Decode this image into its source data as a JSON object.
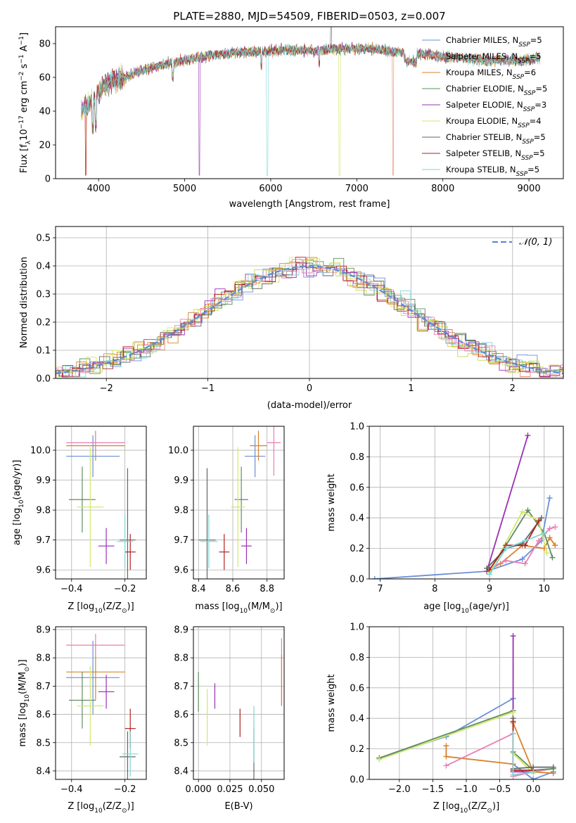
{
  "colors": [
    "#6a8fd8",
    "#e58a6a",
    "#d8822a",
    "#5f8d5f",
    "#9a2fb5",
    "#d2e86a",
    "#666666",
    "#b22222",
    "#7fd6d6",
    "#e87fb3",
    "#c8d850"
  ],
  "chart_data": [
    {
      "id": "spectrum",
      "type": "line",
      "title": "PLATE=2880, MJD=54509, FIBERID=0503, z=0.007",
      "xlabel": "wavelength [Angstrom, rest frame]",
      "ylabel": "Flux [f",
      "ylabel_sub": "λ",
      "ylabel_rest": "10",
      "ylabel_exp": "−17",
      "ylabel_units": " erg cm",
      "ylabel_units_exp": "−2",
      "ylabel_units2": " s",
      "ylabel_units2_exp": "−1",
      "ylabel_units3": " A",
      "ylabel_units3_exp": "−1",
      "ylabel_units4": "]",
      "xlim": [
        3500,
        9400
      ],
      "ylim": [
        0,
        90
      ],
      "xticks": [
        4000,
        5000,
        6000,
        7000,
        8000,
        9000
      ],
      "yticks": [
        0,
        20,
        40,
        60,
        80
      ],
      "legend_position": "top-right",
      "continuum": [
        [
          3800,
          40
        ],
        [
          3900,
          45
        ],
        [
          4000,
          52
        ],
        [
          4100,
          57
        ],
        [
          4300,
          60
        ],
        [
          4500,
          64
        ],
        [
          4700,
          67
        ],
        [
          4900,
          69
        ],
        [
          5100,
          71
        ],
        [
          5300,
          73
        ],
        [
          5500,
          74
        ],
        [
          5700,
          75
        ],
        [
          5900,
          75
        ],
        [
          6100,
          76
        ],
        [
          6300,
          76
        ],
        [
          6500,
          76
        ],
        [
          6700,
          77
        ],
        [
          6900,
          77
        ],
        [
          7100,
          77
        ],
        [
          7300,
          76
        ],
        [
          7500,
          75
        ],
        [
          7700,
          74
        ],
        [
          7900,
          73
        ],
        [
          8100,
          72
        ],
        [
          8300,
          71
        ],
        [
          8500,
          70
        ],
        [
          8700,
          70
        ],
        [
          8900,
          70
        ],
        [
          9100,
          71
        ]
      ],
      "series": [
        {
          "name": "Chabrier MILES, N",
          "sub": "SSP",
          "eq": "=5",
          "color": "#6a8fd8"
        },
        {
          "name": "Salpeter MILES, N",
          "sub": "SSP",
          "eq": "=5",
          "color": "#e58a6a"
        },
        {
          "name": "Kroupa MILES, N",
          "sub": "SSP",
          "eq": "=6",
          "color": "#d8822a"
        },
        {
          "name": "Chabrier ELODIE, N",
          "sub": "SSP",
          "eq": "=5",
          "color": "#5f8d5f"
        },
        {
          "name": "Salpeter ELODIE, N",
          "sub": "SSP",
          "eq": "=3",
          "color": "#9a2fb5"
        },
        {
          "name": "Kroupa ELODIE, N",
          "sub": "SSP",
          "eq": "=4",
          "color": "#d2e86a"
        },
        {
          "name": "Chabrier STELIB, N",
          "sub": "SSP",
          "eq": "=5",
          "color": "#666666"
        },
        {
          "name": "Salpeter STELIB, N",
          "sub": "SSP",
          "eq": "=5",
          "color": "#b22222"
        },
        {
          "name": "Kroupa STELIB, N",
          "sub": "SSP",
          "eq": "=5",
          "color": "#7fd6d6"
        }
      ]
    },
    {
      "id": "residuals",
      "type": "bar",
      "xlabel": "(data-model)/error",
      "ylabel": "Normed distribution",
      "xlim": [
        -2.5,
        2.5
      ],
      "ylim": [
        0,
        0.54
      ],
      "xticks": [
        -2,
        -1,
        0,
        1,
        2
      ],
      "yticks": [
        0,
        0.1,
        0.2,
        0.3,
        0.4,
        0.5
      ],
      "grid": true,
      "legend_label": "𝒩(0, 1)",
      "legend_position": "top-right",
      "bin_width": 0.1
    },
    {
      "id": "age-vs-Z",
      "type": "scatter",
      "xlabel": "Z [log",
      "xlabel_sub": "10",
      "xlabel_rest": "(Z/Z",
      "xlabel_sub2": "⊙",
      "xlabel_end": ")]",
      "ylabel": "age  [log",
      "ylabel_sub": "10",
      "ylabel_rest": "(age/yr)]",
      "xlim": [
        -0.46,
        -0.12
      ],
      "ylim": [
        9.57,
        10.08
      ],
      "xticks": [
        -0.4,
        -0.2
      ],
      "yticks": [
        9.6,
        9.7,
        9.8,
        9.9,
        10.0
      ],
      "points": [
        {
          "x": -0.32,
          "y": 9.98,
          "xerr": 0.1,
          "yerr": 0.07,
          "c": "#6a8fd8"
        },
        {
          "x": -0.31,
          "y": 10.015,
          "xerr": 0.11,
          "yerr": 0.05,
          "c": "#d8822a"
        },
        {
          "x": -0.31,
          "y": 10.025,
          "xerr": 0.11,
          "yerr": 0.04,
          "c": "#e87fb3"
        },
        {
          "x": -0.36,
          "y": 9.835,
          "xerr": 0.05,
          "yerr": 0.11,
          "c": "#5f8d5f"
        },
        {
          "x": -0.33,
          "y": 9.81,
          "xerr": 0.05,
          "yerr": 0.2,
          "c": "#d2e86a"
        },
        {
          "x": -0.27,
          "y": 9.68,
          "xerr": 0.03,
          "yerr": 0.06,
          "c": "#9a2fb5"
        },
        {
          "x": -0.19,
          "y": 9.7,
          "xerr": 0.03,
          "yerr": 0.24,
          "c": "#666666"
        },
        {
          "x": -0.18,
          "y": 9.66,
          "xerr": 0.02,
          "yerr": 0.06,
          "c": "#b22222"
        },
        {
          "x": -0.2,
          "y": 9.695,
          "xerr": 0.03,
          "yerr": 0.09,
          "c": "#7fd6d6"
        }
      ]
    },
    {
      "id": "age-vs-mass",
      "type": "scatter",
      "xlabel": "mass [log",
      "xlabel_sub": "10",
      "xlabel_rest": "(M/M",
      "xlabel_sub2": "⊙",
      "xlabel_end": ")]",
      "xlim": [
        8.37,
        8.9
      ],
      "ylim": [
        9.57,
        10.08
      ],
      "xticks": [
        8.4,
        8.6,
        8.8
      ],
      "yticks": [
        9.6,
        9.7,
        9.8,
        9.9,
        10.0
      ],
      "points": [
        {
          "x": 8.73,
          "y": 9.98,
          "xerr": 0.06,
          "yerr": 0.07,
          "c": "#6a8fd8"
        },
        {
          "x": 8.75,
          "y": 10.015,
          "xerr": 0.05,
          "yerr": 0.05,
          "c": "#d8822a"
        },
        {
          "x": 8.84,
          "y": 10.025,
          "xerr": 0.04,
          "yerr": 0.11,
          "c": "#e87fb3"
        },
        {
          "x": 8.65,
          "y": 9.835,
          "xerr": 0.04,
          "yerr": 0.11,
          "c": "#5f8d5f"
        },
        {
          "x": 8.63,
          "y": 9.81,
          "xerr": 0.04,
          "yerr": 0.2,
          "c": "#d2e86a"
        },
        {
          "x": 8.68,
          "y": 9.68,
          "xerr": 0.03,
          "yerr": 0.06,
          "c": "#9a2fb5"
        },
        {
          "x": 8.45,
          "y": 9.7,
          "xerr": 0.05,
          "yerr": 0.24,
          "c": "#666666"
        },
        {
          "x": 8.55,
          "y": 9.66,
          "xerr": 0.03,
          "yerr": 0.06,
          "c": "#b22222"
        },
        {
          "x": 8.46,
          "y": 9.695,
          "xerr": 0.05,
          "yerr": 0.09,
          "c": "#7fd6d6"
        }
      ]
    },
    {
      "id": "weight-vs-age",
      "type": "line",
      "xlabel": "age  [log",
      "xlabel_sub": "10",
      "xlabel_rest": "(age/yr)]",
      "ylabel": "mass weight",
      "xlim": [
        6.8,
        10.35
      ],
      "ylim": [
        0,
        1.0
      ],
      "xticks": [
        7,
        8,
        9,
        10
      ],
      "yticks": [
        0.0,
        0.2,
        0.4,
        0.6,
        0.8,
        1.0
      ],
      "series": [
        {
          "c": "#6a8fd8",
          "pts": [
            [
              6.9,
              0.0
            ],
            [
              8.95,
              0.05
            ],
            [
              9.6,
              0.13
            ],
            [
              9.95,
              0.25
            ],
            [
              10.1,
              0.53
            ]
          ]
        },
        {
          "c": "#d8822a",
          "pts": [
            [
              8.95,
              0.05
            ],
            [
              9.2,
              0.1
            ],
            [
              9.6,
              0.22
            ],
            [
              10.0,
              0.2
            ],
            [
              10.1,
              0.27
            ],
            [
              10.2,
              0.22
            ]
          ]
        },
        {
          "c": "#e87fb3",
          "pts": [
            [
              9.0,
              0.07
            ],
            [
              9.3,
              0.12
            ],
            [
              9.65,
              0.1
            ],
            [
              9.9,
              0.25
            ],
            [
              10.1,
              0.33
            ],
            [
              10.2,
              0.34
            ]
          ]
        },
        {
          "c": "#5f8d5f",
          "pts": [
            [
              9.0,
              0.05
            ],
            [
              9.3,
              0.22
            ],
            [
              9.7,
              0.45
            ],
            [
              10.0,
              0.3
            ],
            [
              10.15,
              0.14
            ]
          ]
        },
        {
          "c": "#9a2fb5",
          "pts": [
            [
              8.95,
              0.05
            ],
            [
              9.7,
              0.94
            ]
          ]
        },
        {
          "c": "#d2e86a",
          "pts": [
            [
              9.0,
              0.04
            ],
            [
              9.6,
              0.44
            ],
            [
              9.9,
              0.38
            ],
            [
              10.05,
              0.17
            ]
          ]
        },
        {
          "c": "#666666",
          "pts": [
            [
              8.95,
              0.07
            ],
            [
              9.3,
              0.2
            ],
            [
              9.6,
              0.23
            ],
            [
              9.95,
              0.4
            ]
          ]
        },
        {
          "c": "#b22222",
          "pts": [
            [
              9.0,
              0.06
            ],
            [
              9.3,
              0.22
            ],
            [
              9.65,
              0.22
            ],
            [
              9.9,
              0.38
            ]
          ]
        },
        {
          "c": "#7fd6d6",
          "pts": [
            [
              9.0,
              0.03
            ],
            [
              9.3,
              0.2
            ],
            [
              9.65,
              0.25
            ],
            [
              10.0,
              0.3
            ]
          ]
        }
      ]
    },
    {
      "id": "mass-vs-Z",
      "type": "scatter",
      "xlabel": "Z [log",
      "xlabel_sub": "10",
      "xlabel_rest": "(Z/Z",
      "xlabel_sub2": "⊙",
      "xlabel_end": ")]",
      "ylabel": "mass [log",
      "ylabel_sub": "10",
      "ylabel_rest": "(M/M",
      "ylabel_sub2": "⊙",
      "ylabel_end": ")]",
      "xlim": [
        -0.46,
        -0.12
      ],
      "ylim": [
        8.37,
        8.91
      ],
      "xticks": [
        -0.4,
        -0.2
      ],
      "yticks": [
        8.4,
        8.5,
        8.6,
        8.7,
        8.8,
        8.9
      ],
      "points": [
        {
          "x": -0.32,
          "y": 8.73,
          "xerr": 0.1,
          "yerr": 0.13,
          "c": "#6a8fd8"
        },
        {
          "x": -0.31,
          "y": 8.75,
          "xerr": 0.11,
          "yerr": 0.1,
          "c": "#d8822a"
        },
        {
          "x": -0.31,
          "y": 8.845,
          "xerr": 0.11,
          "yerr": 0.04,
          "c": "#e87fb3"
        },
        {
          "x": -0.36,
          "y": 8.65,
          "xerr": 0.05,
          "yerr": 0.1,
          "c": "#5f8d5f"
        },
        {
          "x": -0.33,
          "y": 8.63,
          "xerr": 0.05,
          "yerr": 0.14,
          "c": "#d2e86a"
        },
        {
          "x": -0.27,
          "y": 8.68,
          "xerr": 0.03,
          "yerr": 0.06,
          "c": "#9a2fb5"
        },
        {
          "x": -0.19,
          "y": 8.45,
          "xerr": 0.03,
          "yerr": 0.09,
          "c": "#666666"
        },
        {
          "x": -0.18,
          "y": 8.55,
          "xerr": 0.02,
          "yerr": 0.07,
          "c": "#b22222"
        },
        {
          "x": -0.18,
          "y": 8.46,
          "xerr": 0.03,
          "yerr": 0.08,
          "c": "#7fd6d6"
        }
      ]
    },
    {
      "id": "mass-vs-EBV",
      "type": "scatter",
      "xlabel": "E(B-V)",
      "xlim": [
        -0.004,
        0.068
      ],
      "ylim": [
        8.37,
        8.91
      ],
      "xticks": [
        0.0,
        0.025,
        0.05
      ],
      "xtick_labels": [
        "0.000",
        "0.025",
        "0.050"
      ],
      "yticks": [
        8.4,
        8.5,
        8.6,
        8.7,
        8.8,
        8.9
      ],
      "points": [
        {
          "x": 0.0,
          "y": 8.68,
          "yerr": 0.07,
          "c": "#5f8d5f"
        },
        {
          "x": 0.007,
          "y": 8.59,
          "yerr": 0.1,
          "c": "#d2e86a"
        },
        {
          "x": 0.013,
          "y": 8.665,
          "yerr": 0.045,
          "c": "#9a2fb5"
        },
        {
          "x": 0.033,
          "y": 8.57,
          "yerr": 0.05,
          "c": "#b22222"
        },
        {
          "x": 0.044,
          "y": 8.46,
          "yerr": 0.09,
          "c": "#666666"
        },
        {
          "x": 0.044,
          "y": 8.53,
          "yerr": 0.1,
          "c": "#7fd6d6"
        },
        {
          "x": 0.066,
          "y": 8.75,
          "yerr": 0.12,
          "c": "#e87fb3"
        },
        {
          "x": 0.066,
          "y": 8.72,
          "yerr": 0.09,
          "c": "#d8822a"
        }
      ]
    },
    {
      "id": "weight-vs-Z",
      "type": "line",
      "xlabel": "Z [log",
      "xlabel_sub": "10",
      "xlabel_rest": "(Z/Z",
      "xlabel_sub2": "⊙",
      "xlabel_end": ")]",
      "ylabel": "mass weight",
      "xlim": [
        -2.45,
        0.45
      ],
      "ylim": [
        0,
        1.0
      ],
      "xticks": [
        -2.0,
        -1.5,
        -1.0,
        -0.5,
        0.0
      ],
      "xtick_labels": [
        "−2.0",
        "−1.5",
        "−1.0",
        "−0.5",
        "0.0"
      ],
      "yticks": [
        0.0,
        0.2,
        0.4,
        0.6,
        0.8,
        1.0
      ],
      "series": [
        {
          "c": "#6a8fd8",
          "pts": [
            [
              -2.3,
              0.14
            ],
            [
              -1.3,
              0.28
            ],
            [
              -0.3,
              0.53
            ],
            [
              -0.3,
              0.1
            ],
            [
              0.0,
              0.0
            ],
            [
              0.3,
              0.05
            ]
          ]
        },
        {
          "c": "#d8822a",
          "pts": [
            [
              -1.3,
              0.22
            ],
            [
              -1.3,
              0.15
            ],
            [
              -0.3,
              0.1
            ],
            [
              -0.3,
              0.37
            ],
            [
              0.0,
              0.05
            ],
            [
              0.3,
              0.04
            ]
          ]
        },
        {
          "c": "#e87fb3",
          "pts": [
            [
              -1.3,
              0.09
            ],
            [
              -0.3,
              0.3
            ],
            [
              -0.3,
              0.02
            ],
            [
              0.0,
              0.05
            ],
            [
              0.3,
              0.07
            ]
          ]
        },
        {
          "c": "#5f8d5f",
          "pts": [
            [
              -2.3,
              0.14
            ],
            [
              -0.3,
              0.45
            ],
            [
              -0.3,
              0.18
            ],
            [
              0.0,
              0.06
            ],
            [
              0.3,
              0.07
            ]
          ]
        },
        {
          "c": "#9a2fb5",
          "pts": [
            [
              -0.3,
              0.94
            ],
            [
              -0.3,
              0.05
            ],
            [
              0.0,
              0.05
            ]
          ]
        },
        {
          "c": "#d2e86a",
          "pts": [
            [
              -2.3,
              0.13
            ],
            [
              -0.3,
              0.44
            ],
            [
              -0.3,
              0.17
            ],
            [
              0.0,
              0.04
            ]
          ]
        },
        {
          "c": "#666666",
          "pts": [
            [
              -0.3,
              0.4
            ],
            [
              -0.3,
              0.07
            ],
            [
              0.0,
              0.08
            ],
            [
              0.3,
              0.08
            ]
          ]
        },
        {
          "c": "#b22222",
          "pts": [
            [
              -0.3,
              0.38
            ],
            [
              -0.3,
              0.06
            ],
            [
              0.0,
              0.06
            ]
          ]
        },
        {
          "c": "#7fd6d6",
          "pts": [
            [
              -0.3,
              0.3
            ],
            [
              -0.3,
              0.03
            ],
            [
              0.0,
              0.05
            ]
          ]
        }
      ]
    }
  ]
}
